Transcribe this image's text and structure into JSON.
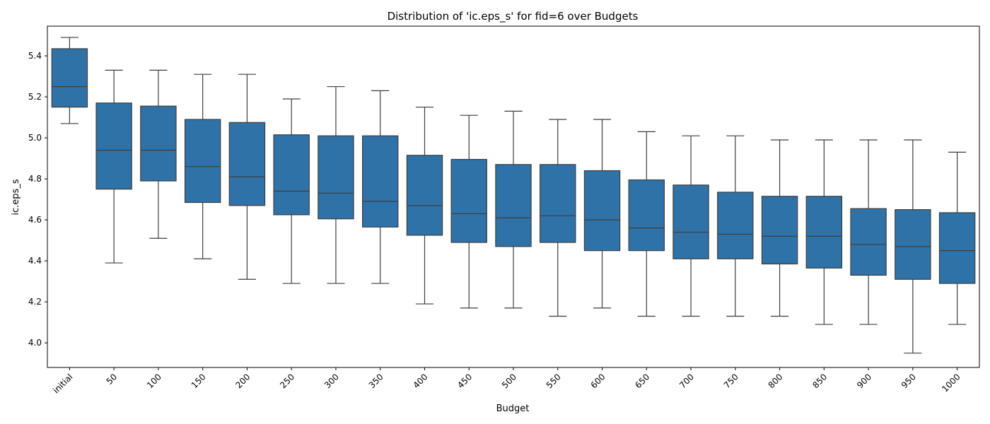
{
  "chart_data": {
    "type": "box",
    "title": "Distribution of 'ic.eps_s' for fid=6 over Budgets",
    "xlabel": "Budget",
    "ylabel": "ic.eps_s",
    "ylim": [
      3.88,
      5.545
    ],
    "yticks": [
      "4.0",
      "4.2",
      "4.4",
      "4.6",
      "4.8",
      "5.0",
      "5.2",
      "5.4"
    ],
    "grid": false,
    "legend": "none",
    "box_color": "#2f72a8",
    "line_color": "#3d3d3d",
    "categories": [
      "initial",
      "50",
      "100",
      "150",
      "200",
      "250",
      "300",
      "350",
      "400",
      "450",
      "500",
      "550",
      "600",
      "650",
      "700",
      "750",
      "800",
      "850",
      "900",
      "950",
      "1000"
    ],
    "boxes": [
      {
        "whisker_low": 5.07,
        "q1": 5.15,
        "median": 5.25,
        "q3": 5.435,
        "whisker_high": 5.49
      },
      {
        "whisker_low": 4.39,
        "q1": 4.75,
        "median": 4.94,
        "q3": 5.17,
        "whisker_high": 5.33
      },
      {
        "whisker_low": 4.51,
        "q1": 4.79,
        "median": 4.94,
        "q3": 5.155,
        "whisker_high": 5.33
      },
      {
        "whisker_low": 4.41,
        "q1": 4.685,
        "median": 4.86,
        "q3": 5.09,
        "whisker_high": 5.31
      },
      {
        "whisker_low": 4.31,
        "q1": 4.67,
        "median": 4.81,
        "q3": 5.075,
        "whisker_high": 5.31
      },
      {
        "whisker_low": 4.29,
        "q1": 4.625,
        "median": 4.74,
        "q3": 5.015,
        "whisker_high": 5.19
      },
      {
        "whisker_low": 4.29,
        "q1": 4.605,
        "median": 4.73,
        "q3": 5.01,
        "whisker_high": 5.25
      },
      {
        "whisker_low": 4.29,
        "q1": 4.565,
        "median": 4.69,
        "q3": 5.01,
        "whisker_high": 5.23
      },
      {
        "whisker_low": 4.19,
        "q1": 4.525,
        "median": 4.67,
        "q3": 4.915,
        "whisker_high": 5.15
      },
      {
        "whisker_low": 4.17,
        "q1": 4.49,
        "median": 4.63,
        "q3": 4.895,
        "whisker_high": 5.11
      },
      {
        "whisker_low": 4.17,
        "q1": 4.47,
        "median": 4.61,
        "q3": 4.87,
        "whisker_high": 5.13
      },
      {
        "whisker_low": 4.13,
        "q1": 4.49,
        "median": 4.62,
        "q3": 4.87,
        "whisker_high": 5.09
      },
      {
        "whisker_low": 4.17,
        "q1": 4.45,
        "median": 4.6,
        "q3": 4.84,
        "whisker_high": 5.09
      },
      {
        "whisker_low": 4.13,
        "q1": 4.45,
        "median": 4.56,
        "q3": 4.795,
        "whisker_high": 5.03
      },
      {
        "whisker_low": 4.13,
        "q1": 4.41,
        "median": 4.54,
        "q3": 4.77,
        "whisker_high": 5.01
      },
      {
        "whisker_low": 4.13,
        "q1": 4.41,
        "median": 4.53,
        "q3": 4.735,
        "whisker_high": 5.01
      },
      {
        "whisker_low": 4.13,
        "q1": 4.385,
        "median": 4.52,
        "q3": 4.715,
        "whisker_high": 4.99
      },
      {
        "whisker_low": 4.09,
        "q1": 4.365,
        "median": 4.52,
        "q3": 4.715,
        "whisker_high": 4.99
      },
      {
        "whisker_low": 4.09,
        "q1": 4.33,
        "median": 4.48,
        "q3": 4.655,
        "whisker_high": 4.99
      },
      {
        "whisker_low": 3.95,
        "q1": 4.31,
        "median": 4.47,
        "q3": 4.65,
        "whisker_high": 4.99
      },
      {
        "whisker_low": 4.09,
        "q1": 4.29,
        "median": 4.45,
        "q3": 4.635,
        "whisker_high": 4.93
      }
    ]
  }
}
